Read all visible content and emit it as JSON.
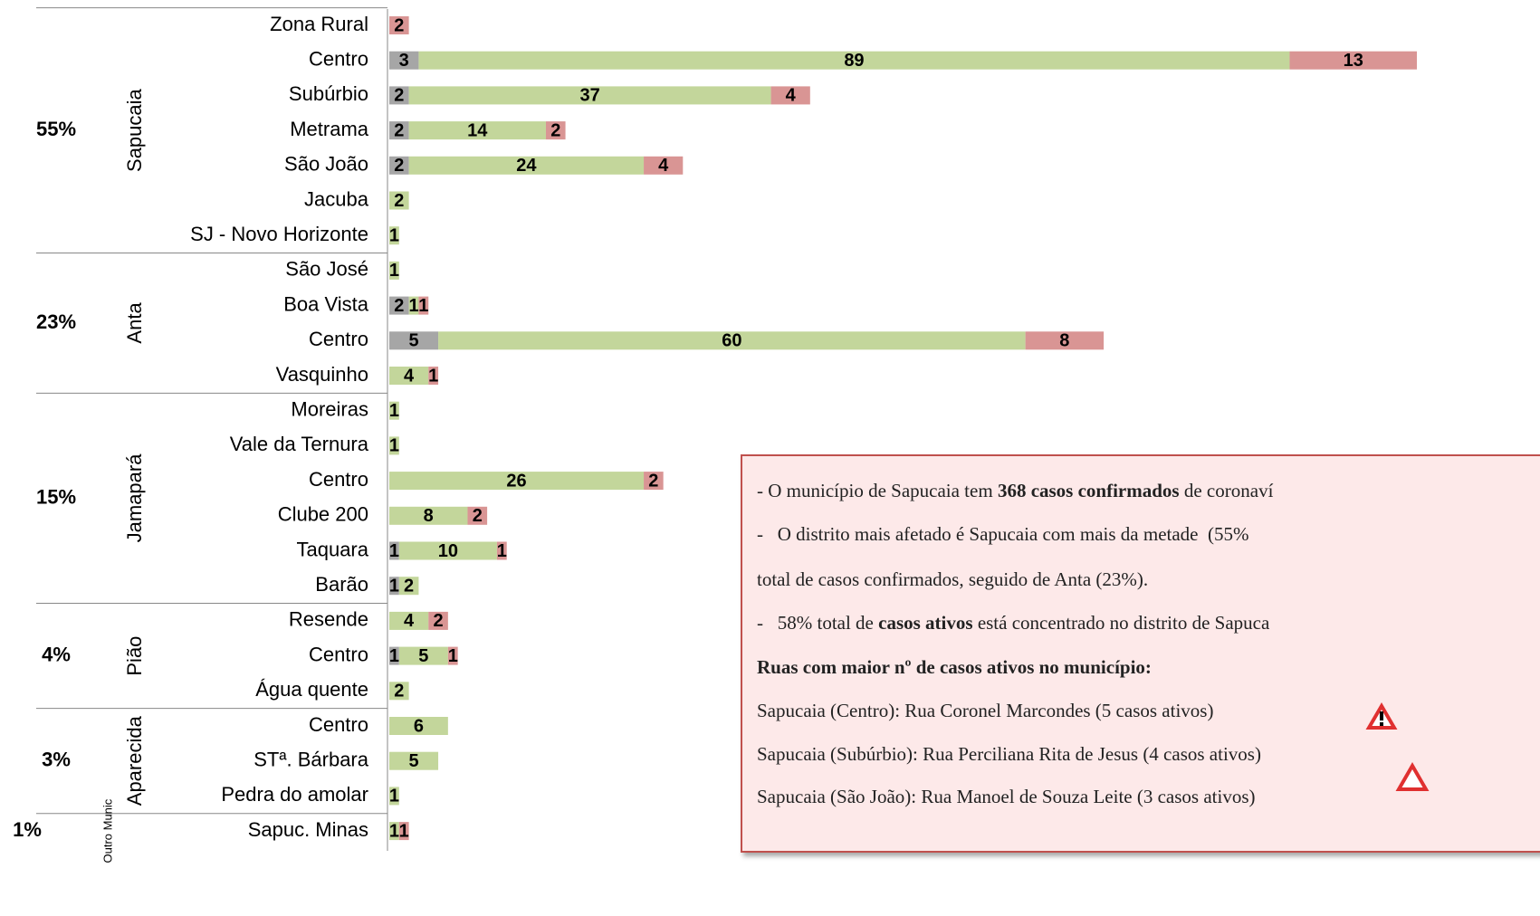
{
  "chart_data": {
    "type": "stacked-bar-horizontal",
    "groups": [
      {
        "name": "Sapucaia",
        "label": "55%",
        "categories": [
          "Zona Rural",
          "Centro",
          "Subúrbio",
          "Metrama",
          "São João ",
          "Jacuba",
          "SJ - Novo Horizonte"
        ]
      },
      {
        "name": "Anta",
        "label": "23%",
        "categories": [
          "São José",
          "Boa Vista",
          "Centro",
          "Vasquinho"
        ]
      },
      {
        "name": "Jamapará",
        "label": "15%",
        "categories": [
          "Moreiras",
          "Vale da Ternura",
          "Centro",
          "Clube 200",
          "Taquara",
          "Barão"
        ]
      },
      {
        "name": "Pião",
        "label": "4%",
        "categories": [
          "Resende",
          "Centro",
          "Água quente"
        ]
      },
      {
        "name": "Aparecida",
        "label": "3%",
        "categories": [
          "Centro",
          "STª. Bárbara",
          "Pedra do amolar"
        ]
      },
      {
        "name": "Outro Munic",
        "label": "1%",
        "categories": [
          "Sapuc. Minas"
        ]
      }
    ],
    "series": [
      {
        "color": "#a6a6a6",
        "values": [
          null,
          3,
          2,
          2,
          2,
          null,
          null,
          null,
          2,
          5,
          null,
          null,
          null,
          null,
          null,
          1,
          1,
          null,
          1,
          null,
          null,
          null,
          null,
          null
        ]
      },
      {
        "color": "#c3d69b",
        "values": [
          null,
          89,
          37,
          14,
          24,
          2,
          1,
          1,
          1,
          60,
          4,
          1,
          1,
          26,
          8,
          10,
          2,
          4,
          5,
          2,
          6,
          5,
          1,
          1
        ]
      },
      {
        "color": "#d99594",
        "values": [
          2,
          13,
          4,
          2,
          4,
          null,
          null,
          null,
          1,
          8,
          1,
          null,
          null,
          2,
          2,
          1,
          null,
          2,
          1,
          null,
          null,
          null,
          null,
          1
        ]
      }
    ]
  },
  "note": {
    "lines": [
      [
        {
          "text": "- O município de Sapucaia tem "
        },
        {
          "text": "368 casos confirmados",
          "bold": true
        },
        {
          "text": " de coronaví"
        }
      ],
      [
        {
          "text": "-   O distrito mais afetado é Sapucaia com mais da metade  (55%"
        }
      ],
      [
        {
          "text": "total de casos confirmados, seguido de Anta (23%)."
        }
      ],
      [
        {
          "text": "-   58% total de "
        },
        {
          "text": "casos ativos",
          "bold": true
        },
        {
          "text": " está concentrado no distrito de Sapuca"
        }
      ],
      [
        {
          "text": "Ruas com maior nº de casos ativos no município:",
          "bold": true
        }
      ],
      [
        {
          "text": "Sapucaia (Centro): Rua Coronel Marcondes (5 casos ativos)"
        }
      ],
      [
        {
          "text": "Sapucaia (Subúrbio): Rua Perciliana Rita de Jesus (4 casos ativos)"
        }
      ],
      [
        {
          "text": "Sapucaia (São João): Rua Manoel de Souza Leite (3 casos ativos)"
        }
      ]
    ]
  }
}
